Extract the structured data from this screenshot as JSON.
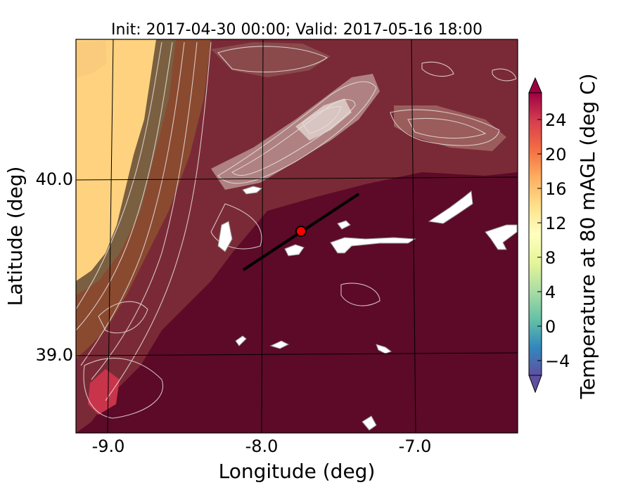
{
  "title": "Init: 2017-04-30 00:00; Valid: 2017-05-16 18:00",
  "xaxis": {
    "label": "Longitude (deg)",
    "ticks": [
      "-9.0",
      "-8.0",
      "-7.0"
    ]
  },
  "yaxis": {
    "label": "Latitude (deg)",
    "ticks": [
      "40.0",
      "39.0"
    ]
  },
  "colorbar": {
    "label": "Temperature at 80 mAGL (deg C)",
    "ticks": [
      "24",
      "20",
      "16",
      "12",
      "8",
      "4",
      "0",
      "−4"
    ],
    "range": [
      -6,
      28
    ],
    "colormap": [
      "#5e4fa2",
      "#3288bd",
      "#66c2a5",
      "#abdda4",
      "#e6f598",
      "#ffffbf",
      "#fee08b",
      "#fdae61",
      "#f46d43",
      "#d53e4f",
      "#9e0142"
    ]
  },
  "map": {
    "ocean_color": "#fed27f",
    "land_colors": [
      "#7a5a3a",
      "#8a3c36",
      "#6e1a2e",
      "#5a0a26"
    ],
    "contour_color": "#e8dede",
    "snow_color": "#ffffff",
    "transect_color": "#000000",
    "marker_color": "#ff0000"
  }
}
